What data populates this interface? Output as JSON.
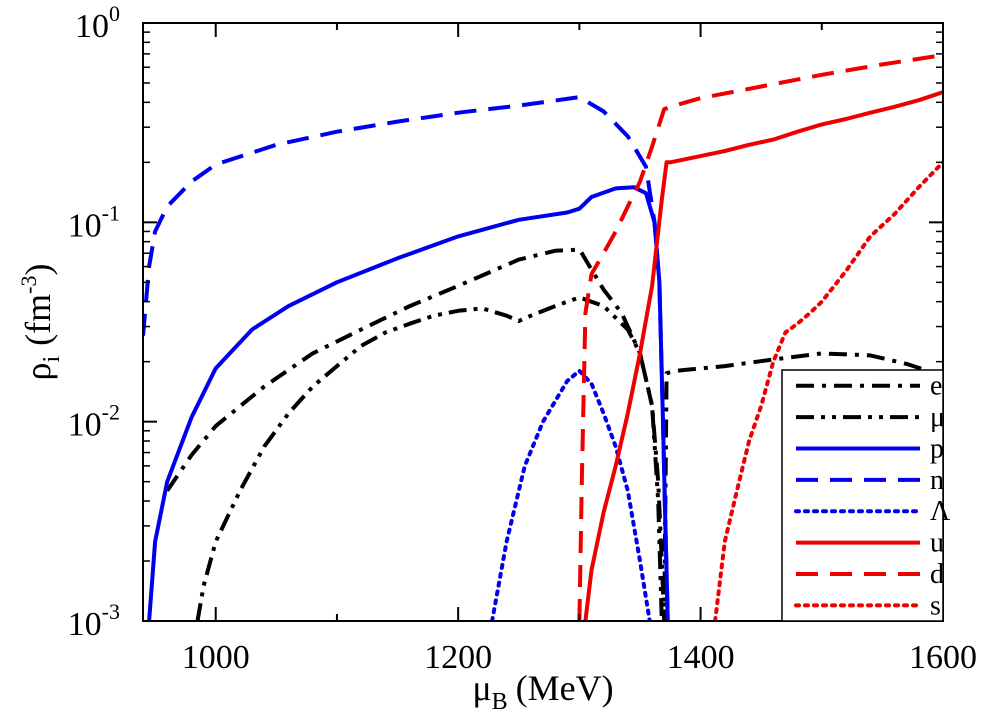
{
  "chart_data": {
    "type": "line",
    "title": "",
    "xlabel": {
      "symbol": "μ",
      "subscript": "B",
      "unit": "(MeV)"
    },
    "ylabel": {
      "symbol": "ρ",
      "subscript": "i",
      "unit": "(fm",
      "unit_exp": "-3",
      "unit_close": ")"
    },
    "xlim": [
      940,
      1600
    ],
    "ylim": [
      0.001,
      1
    ],
    "yscale": "log",
    "x_ticks": [
      "1000",
      "1200",
      "1400",
      "1600"
    ],
    "x_tick_values": [
      1000,
      1200,
      1400,
      1600
    ],
    "y_ticks": [
      {
        "value": 0.001,
        "base": "10",
        "exp": "-3"
      },
      {
        "value": 0.01,
        "base": "10",
        "exp": "-2"
      },
      {
        "value": 0.1,
        "base": "10",
        "exp": "-1"
      },
      {
        "value": 1,
        "base": "10",
        "exp": "0"
      }
    ],
    "legend_position": "bottom-right",
    "series": [
      {
        "name": "e",
        "color": "#000000",
        "style": "dashdot",
        "x": [
          960,
          980,
          1000,
          1040,
          1080,
          1120,
          1160,
          1200,
          1250,
          1280,
          1300,
          1302,
          1310,
          1320,
          1335,
          1350,
          1360,
          1365,
          1368,
          1370,
          1372,
          1380,
          1420,
          1460,
          1500,
          1540,
          1570,
          1600
        ],
        "y": [
          0.0045,
          0.0068,
          0.0095,
          0.015,
          0.022,
          0.029,
          0.038,
          0.048,
          0.065,
          0.072,
          0.073,
          0.07,
          0.058,
          0.046,
          0.035,
          0.022,
          0.012,
          0.005,
          0.002,
          0.001,
          0.0175,
          0.018,
          0.019,
          0.0205,
          0.022,
          0.0215,
          0.0195,
          0.017
        ]
      },
      {
        "name": "μ",
        "color": "#000000",
        "style": "dashdotdot",
        "x": [
          985,
          990,
          1000,
          1020,
          1040,
          1060,
          1080,
          1100,
          1120,
          1140,
          1160,
          1180,
          1200,
          1220,
          1240,
          1250,
          1260,
          1280,
          1300,
          1320,
          1340,
          1350,
          1360,
          1365,
          1368
        ],
        "y": [
          0.001,
          0.0015,
          0.0025,
          0.0045,
          0.0075,
          0.011,
          0.015,
          0.019,
          0.024,
          0.028,
          0.031,
          0.034,
          0.036,
          0.037,
          0.034,
          0.032,
          0.034,
          0.038,
          0.042,
          0.038,
          0.029,
          0.022,
          0.012,
          0.004,
          0.001
        ]
      },
      {
        "name": "p",
        "color": "#0000ee",
        "style": "solid",
        "x": [
          945,
          950,
          960,
          980,
          1000,
          1030,
          1060,
          1100,
          1150,
          1200,
          1250,
          1290,
          1300,
          1310,
          1330,
          1345,
          1355,
          1362,
          1366,
          1369,
          1371,
          1373
        ],
        "y": [
          0.001,
          0.0025,
          0.005,
          0.0105,
          0.0185,
          0.029,
          0.038,
          0.05,
          0.066,
          0.085,
          0.103,
          0.112,
          0.117,
          0.134,
          0.148,
          0.15,
          0.14,
          0.1,
          0.05,
          0.01,
          0.003,
          0.001
        ]
      },
      {
        "name": "n",
        "color": "#0000ee",
        "style": "dashed",
        "x": [
          940,
          945,
          950,
          960,
          980,
          1000,
          1050,
          1100,
          1150,
          1200,
          1250,
          1300,
          1320,
          1340,
          1355,
          1362,
          1366,
          1369,
          1371,
          1373
        ],
        "y": [
          0.027,
          0.06,
          0.09,
          0.12,
          0.16,
          0.195,
          0.245,
          0.285,
          0.32,
          0.355,
          0.385,
          0.425,
          0.36,
          0.27,
          0.19,
          0.1,
          0.05,
          0.01,
          0.003,
          0.001
        ]
      },
      {
        "name": "Λ",
        "color": "#0000ee",
        "style": "dotted",
        "x": [
          1228,
          1240,
          1255,
          1270,
          1290,
          1300,
          1310,
          1320,
          1330,
          1340,
          1350,
          1358
        ],
        "y": [
          0.001,
          0.0025,
          0.006,
          0.01,
          0.016,
          0.018,
          0.0155,
          0.011,
          0.0075,
          0.0045,
          0.002,
          0.001
        ]
      },
      {
        "name": "u",
        "color": "#ee0000",
        "style": "solid",
        "x": [
          1305,
          1310,
          1320,
          1330,
          1340,
          1350,
          1360,
          1368,
          1372,
          1375,
          1400,
          1420,
          1440,
          1460,
          1480,
          1500,
          1520,
          1540,
          1560,
          1580,
          1600
        ],
        "y": [
          0.001,
          0.0018,
          0.0035,
          0.006,
          0.011,
          0.022,
          0.048,
          0.13,
          0.2,
          0.2,
          0.215,
          0.228,
          0.245,
          0.26,
          0.285,
          0.31,
          0.33,
          0.355,
          0.38,
          0.41,
          0.45
        ]
      },
      {
        "name": "d",
        "color": "#ee0000",
        "style": "dashed",
        "x": [
          1300,
          1302,
          1305,
          1310,
          1320,
          1330,
          1340,
          1350,
          1360,
          1370,
          1375,
          1400,
          1450,
          1500,
          1550,
          1600
        ],
        "y": [
          0.001,
          0.005,
          0.035,
          0.055,
          0.07,
          0.09,
          0.12,
          0.16,
          0.24,
          0.37,
          0.38,
          0.42,
          0.48,
          0.55,
          0.62,
          0.69
        ]
      },
      {
        "name": "s",
        "color": "#ee0000",
        "style": "dotted",
        "x": [
          1412,
          1420,
          1430,
          1440,
          1450,
          1460,
          1470,
          1480,
          1490,
          1500,
          1520,
          1540,
          1560,
          1580,
          1600
        ],
        "y": [
          0.001,
          0.0025,
          0.0045,
          0.008,
          0.012,
          0.02,
          0.028,
          0.031,
          0.035,
          0.04,
          0.057,
          0.085,
          0.11,
          0.15,
          0.2
        ]
      }
    ]
  }
}
